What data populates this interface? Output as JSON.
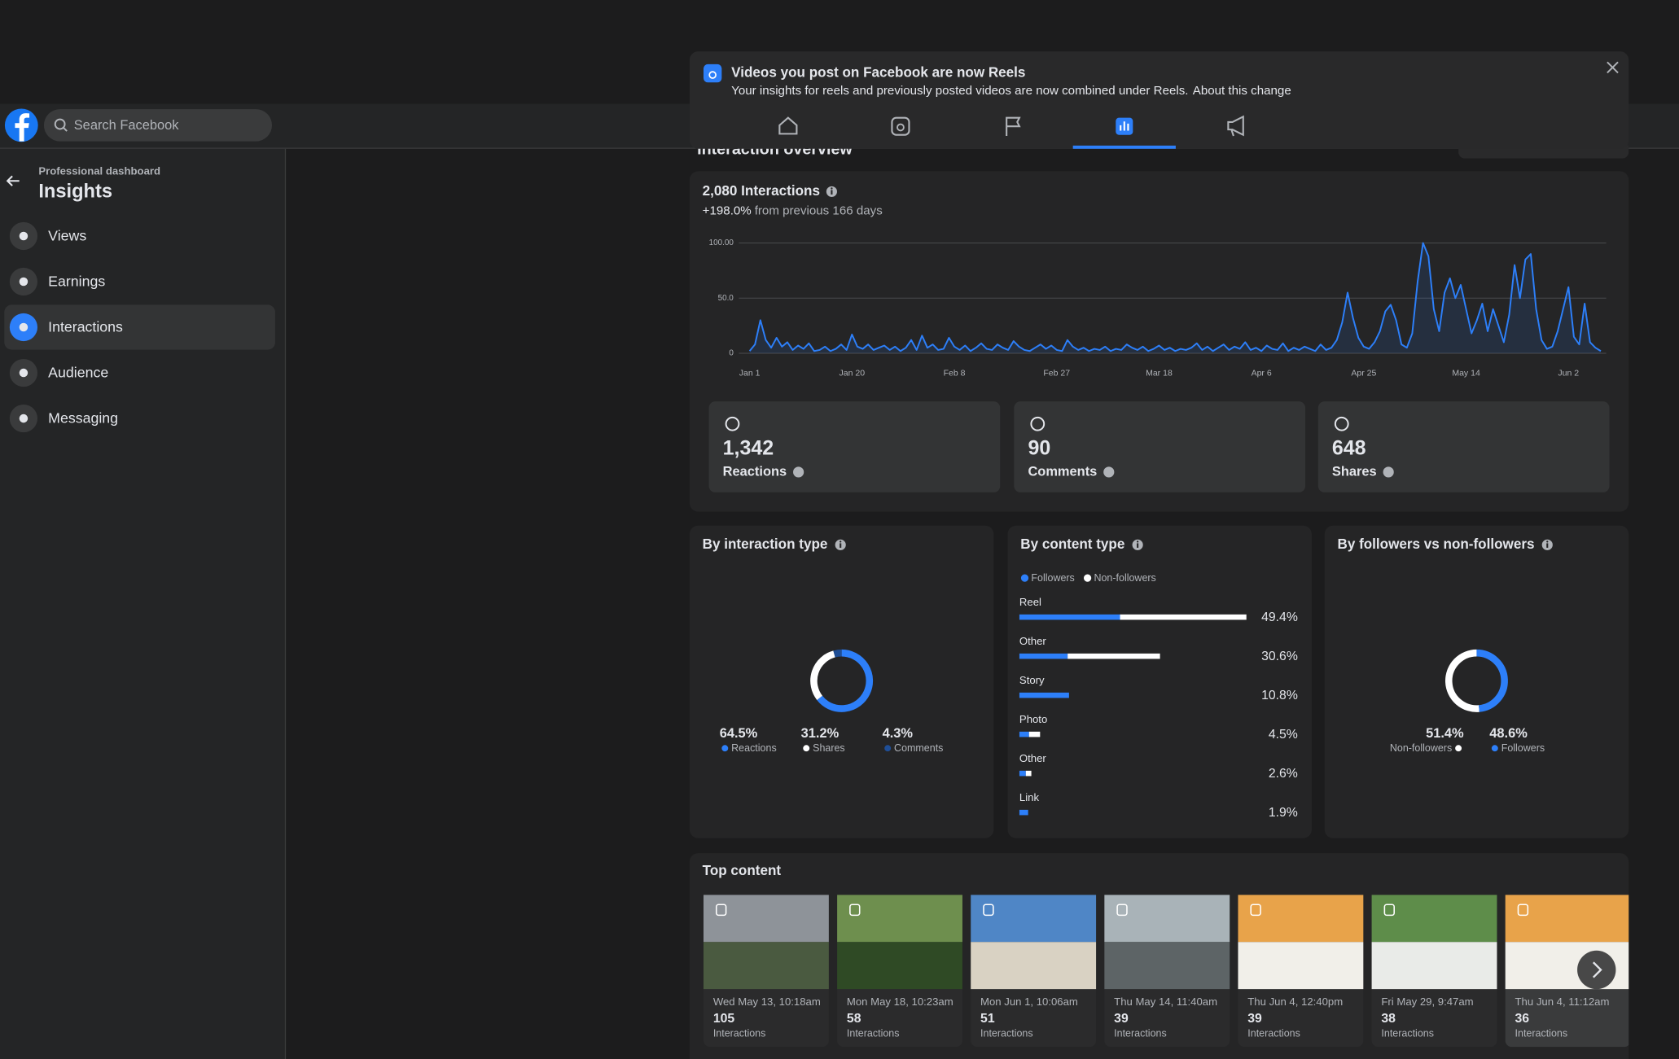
{
  "topbar": {
    "search": "Search Facebook"
  },
  "sidebar": {
    "kicker": "Professional dashboard",
    "title": "Insights",
    "items": [
      "Views",
      "Earnings",
      "Interactions",
      "Audience",
      "Messaging"
    ]
  },
  "banner": {
    "title": "Videos you post on Facebook are now Reels",
    "text": "Your insights for reels and previously posted videos are now combined under Reels.",
    "link": "About this change"
  },
  "section_title": "Interaction overview",
  "stats": [
    {
      "value": "1,342",
      "label": "Reactions"
    },
    {
      "value": "90",
      "label": "Comments"
    },
    {
      "value": "648",
      "label": "Shares"
    }
  ],
  "top_content": {
    "title": "Top content",
    "items": [
      {
        "date": "Wed May 13, 10:18am",
        "count": 105,
        "label": "Interactions"
      },
      {
        "date": "Mon May 18, 10:23am",
        "count": 58,
        "label": "Interactions"
      },
      {
        "date": "Mon Jun 1, 10:06am",
        "count": 51,
        "label": "Interactions"
      },
      {
        "date": "Thu May 14, 11:40am",
        "count": 39,
        "label": "Interactions"
      },
      {
        "date": "Thu Jun 4, 12:40pm",
        "count": 39,
        "label": "Interactions"
      },
      {
        "date": "Fri May 29, 9:47am",
        "count": 38,
        "label": "Interactions"
      },
      {
        "date": "Thu Jun 4, 11:12am",
        "count": 36,
        "label": "Interactions"
      }
    ]
  },
  "chart_data": [
    {
      "type": "line",
      "title": "2,080 Interactions",
      "change": "+198.0%",
      "change_note": "from previous 166 days",
      "color": "#2d7ff9",
      "x": [
        0,
        1,
        2,
        3,
        4,
        5,
        6,
        7,
        8,
        9,
        10,
        11,
        12,
        13,
        14,
        15,
        16,
        17,
        18,
        19,
        20,
        21,
        22,
        23,
        24,
        25,
        26,
        27,
        28,
        29,
        30,
        31,
        32,
        33,
        34,
        35,
        36,
        37,
        38,
        39,
        40,
        41,
        42,
        43,
        44,
        45,
        46,
        47,
        48,
        49,
        50,
        51,
        52,
        53,
        54,
        55,
        56,
        57,
        58,
        59,
        60,
        61,
        62,
        63,
        64,
        65,
        66,
        67,
        68,
        69,
        70,
        71,
        72,
        73,
        74,
        75,
        76,
        77,
        78,
        79,
        80,
        81,
        82,
        83,
        84,
        85,
        86,
        87,
        88,
        89,
        90,
        91,
        92,
        93,
        94,
        95,
        96,
        97,
        98,
        99,
        100,
        101,
        102,
        103,
        104,
        105,
        106,
        107,
        108,
        109,
        110,
        111,
        112,
        113,
        114,
        115,
        116,
        117,
        118,
        119,
        120,
        121,
        122,
        123,
        124,
        125,
        126,
        127,
        128,
        129,
        130,
        131,
        132,
        133,
        134,
        135,
        136,
        137,
        138,
        139,
        140,
        141,
        142,
        143,
        144,
        145,
        146,
        147,
        148,
        149,
        150,
        151,
        152,
        153,
        154,
        155,
        156,
        157,
        158
      ],
      "values": [
        2,
        8,
        30,
        12,
        5,
        14,
        6,
        10,
        3,
        7,
        4,
        9,
        2,
        3,
        6,
        2,
        4,
        8,
        3,
        17,
        6,
        4,
        8,
        3,
        5,
        7,
        3,
        6,
        2,
        5,
        12,
        3,
        16,
        5,
        8,
        3,
        4,
        14,
        6,
        3,
        7,
        2,
        5,
        9,
        4,
        3,
        8,
        5,
        3,
        11,
        6,
        3,
        2,
        5,
        8,
        4,
        7,
        3,
        2,
        12,
        6,
        3,
        5,
        2,
        4,
        3,
        6,
        2,
        4,
        3,
        8,
        5,
        3,
        6,
        2,
        4,
        7,
        3,
        5,
        2,
        4,
        3,
        5,
        9,
        3,
        6,
        2,
        5,
        8,
        3,
        6,
        4,
        10,
        3,
        5,
        2,
        7,
        4,
        3,
        9,
        2,
        5,
        3,
        6,
        4,
        2,
        8,
        3,
        5,
        12,
        28,
        55,
        32,
        14,
        6,
        4,
        10,
        20,
        38,
        44,
        30,
        8,
        5,
        18,
        65,
        100,
        88,
        40,
        20,
        55,
        68,
        50,
        62,
        40,
        18,
        30,
        45,
        20,
        40,
        25,
        10,
        35,
        80,
        50,
        85,
        90,
        40,
        12,
        4,
        6,
        20,
        40,
        60,
        15,
        8,
        45,
        10,
        5,
        2
      ],
      "xlim": [
        -2,
        159
      ],
      "xticks": [
        {
          "value": 0,
          "label": "Jan 1"
        },
        {
          "value": 19,
          "label": "Jan 20"
        },
        {
          "value": 38,
          "label": "Feb 8"
        },
        {
          "value": 57,
          "label": "Feb 27"
        },
        {
          "value": 76,
          "label": "Mar 18"
        },
        {
          "value": 95,
          "label": "Apr 6"
        },
        {
          "value": 114,
          "label": "Apr 25"
        },
        {
          "value": 133,
          "label": "May 14"
        },
        {
          "value": 152,
          "label": "Jun 2"
        }
      ],
      "ylim": [
        0,
        100
      ],
      "yticks": [
        0,
        {
          "value": 50,
          "label": "50.0"
        },
        {
          "value": 100,
          "label": "100.00"
        }
      ],
      "grid": true
    },
    {
      "type": "donut",
      "title": "By interaction type",
      "direction": "clockwise",
      "categories": [
        "Reactions",
        "Shares",
        "Comments"
      ],
      "values": [
        64.5,
        31.2,
        4.3
      ],
      "value_labels": [
        "64.5%",
        "31.2%",
        "4.3%"
      ],
      "colors": [
        "#2d7ff9",
        "#ffffff",
        "#1f4e96"
      ]
    },
    {
      "type": "stacked_barh",
      "title": "By content type",
      "categories": [
        "Reel",
        "Other",
        "Story",
        "Photo",
        "Other",
        "Link"
      ],
      "series": [
        {
          "name": "Followers",
          "color": "#2d7ff9",
          "values": [
            21.9,
            10.5,
            10.8,
            2.1,
            1.4,
            1.9
          ]
        },
        {
          "name": "Non-followers",
          "color": "#ffffff",
          "values": [
            27.5,
            20.1,
            0,
            2.4,
            1.2,
            0
          ]
        }
      ],
      "value_labels": [
        "49.4%",
        "30.6%",
        "10.8%",
        "4.5%",
        "2.6%",
        "1.9%"
      ]
    },
    {
      "type": "donut",
      "title": "By followers vs non-followers",
      "direction": "counterclockwise",
      "categories": [
        "Non-followers",
        "Followers"
      ],
      "values": [
        51.4,
        48.6
      ],
      "value_labels": [
        "51.4%",
        "48.6%"
      ],
      "colors": [
        "#ffffff",
        "#2d7ff9"
      ]
    }
  ]
}
